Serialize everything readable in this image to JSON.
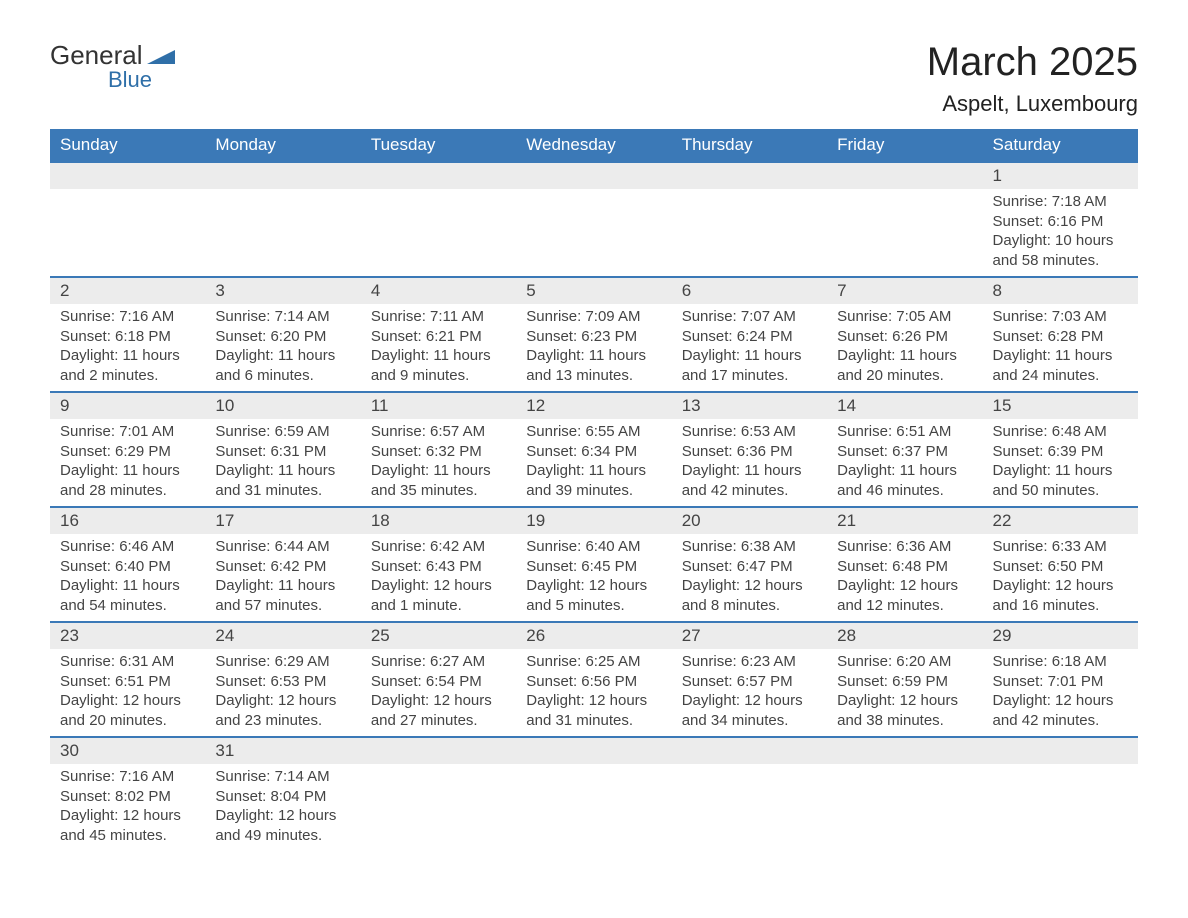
{
  "logo": {
    "text1": "General",
    "text2": "Blue",
    "tri_color": "#2f6fa8"
  },
  "header": {
    "title": "March 2025",
    "location": "Aspelt, Luxembourg"
  },
  "calendar": {
    "header_bg": "#3b79b7",
    "header_fg": "#ffffff",
    "daynum_bg": "#ececec",
    "border_color": "#3b79b7",
    "text_color": "#444444",
    "days": [
      "Sunday",
      "Monday",
      "Tuesday",
      "Wednesday",
      "Thursday",
      "Friday",
      "Saturday"
    ],
    "weeks": [
      [
        null,
        null,
        null,
        null,
        null,
        null,
        {
          "n": "1",
          "sunrise": "7:18 AM",
          "sunset": "6:16 PM",
          "daylight": "10 hours and 58 minutes."
        }
      ],
      [
        {
          "n": "2",
          "sunrise": "7:16 AM",
          "sunset": "6:18 PM",
          "daylight": "11 hours and 2 minutes."
        },
        {
          "n": "3",
          "sunrise": "7:14 AM",
          "sunset": "6:20 PM",
          "daylight": "11 hours and 6 minutes."
        },
        {
          "n": "4",
          "sunrise": "7:11 AM",
          "sunset": "6:21 PM",
          "daylight": "11 hours and 9 minutes."
        },
        {
          "n": "5",
          "sunrise": "7:09 AM",
          "sunset": "6:23 PM",
          "daylight": "11 hours and 13 minutes."
        },
        {
          "n": "6",
          "sunrise": "7:07 AM",
          "sunset": "6:24 PM",
          "daylight": "11 hours and 17 minutes."
        },
        {
          "n": "7",
          "sunrise": "7:05 AM",
          "sunset": "6:26 PM",
          "daylight": "11 hours and 20 minutes."
        },
        {
          "n": "8",
          "sunrise": "7:03 AM",
          "sunset": "6:28 PM",
          "daylight": "11 hours and 24 minutes."
        }
      ],
      [
        {
          "n": "9",
          "sunrise": "7:01 AM",
          "sunset": "6:29 PM",
          "daylight": "11 hours and 28 minutes."
        },
        {
          "n": "10",
          "sunrise": "6:59 AM",
          "sunset": "6:31 PM",
          "daylight": "11 hours and 31 minutes."
        },
        {
          "n": "11",
          "sunrise": "6:57 AM",
          "sunset": "6:32 PM",
          "daylight": "11 hours and 35 minutes."
        },
        {
          "n": "12",
          "sunrise": "6:55 AM",
          "sunset": "6:34 PM",
          "daylight": "11 hours and 39 minutes."
        },
        {
          "n": "13",
          "sunrise": "6:53 AM",
          "sunset": "6:36 PM",
          "daylight": "11 hours and 42 minutes."
        },
        {
          "n": "14",
          "sunrise": "6:51 AM",
          "sunset": "6:37 PM",
          "daylight": "11 hours and 46 minutes."
        },
        {
          "n": "15",
          "sunrise": "6:48 AM",
          "sunset": "6:39 PM",
          "daylight": "11 hours and 50 minutes."
        }
      ],
      [
        {
          "n": "16",
          "sunrise": "6:46 AM",
          "sunset": "6:40 PM",
          "daylight": "11 hours and 54 minutes."
        },
        {
          "n": "17",
          "sunrise": "6:44 AM",
          "sunset": "6:42 PM",
          "daylight": "11 hours and 57 minutes."
        },
        {
          "n": "18",
          "sunrise": "6:42 AM",
          "sunset": "6:43 PM",
          "daylight": "12 hours and 1 minute."
        },
        {
          "n": "19",
          "sunrise": "6:40 AM",
          "sunset": "6:45 PM",
          "daylight": "12 hours and 5 minutes."
        },
        {
          "n": "20",
          "sunrise": "6:38 AM",
          "sunset": "6:47 PM",
          "daylight": "12 hours and 8 minutes."
        },
        {
          "n": "21",
          "sunrise": "6:36 AM",
          "sunset": "6:48 PM",
          "daylight": "12 hours and 12 minutes."
        },
        {
          "n": "22",
          "sunrise": "6:33 AM",
          "sunset": "6:50 PM",
          "daylight": "12 hours and 16 minutes."
        }
      ],
      [
        {
          "n": "23",
          "sunrise": "6:31 AM",
          "sunset": "6:51 PM",
          "daylight": "12 hours and 20 minutes."
        },
        {
          "n": "24",
          "sunrise": "6:29 AM",
          "sunset": "6:53 PM",
          "daylight": "12 hours and 23 minutes."
        },
        {
          "n": "25",
          "sunrise": "6:27 AM",
          "sunset": "6:54 PM",
          "daylight": "12 hours and 27 minutes."
        },
        {
          "n": "26",
          "sunrise": "6:25 AM",
          "sunset": "6:56 PM",
          "daylight": "12 hours and 31 minutes."
        },
        {
          "n": "27",
          "sunrise": "6:23 AM",
          "sunset": "6:57 PM",
          "daylight": "12 hours and 34 minutes."
        },
        {
          "n": "28",
          "sunrise": "6:20 AM",
          "sunset": "6:59 PM",
          "daylight": "12 hours and 38 minutes."
        },
        {
          "n": "29",
          "sunrise": "6:18 AM",
          "sunset": "7:01 PM",
          "daylight": "12 hours and 42 minutes."
        }
      ],
      [
        {
          "n": "30",
          "sunrise": "7:16 AM",
          "sunset": "8:02 PM",
          "daylight": "12 hours and 45 minutes."
        },
        {
          "n": "31",
          "sunrise": "7:14 AM",
          "sunset": "8:04 PM",
          "daylight": "12 hours and 49 minutes."
        },
        null,
        null,
        null,
        null,
        null
      ]
    ],
    "labels": {
      "sunrise": "Sunrise: ",
      "sunset": "Sunset: ",
      "daylight": "Daylight: "
    }
  }
}
